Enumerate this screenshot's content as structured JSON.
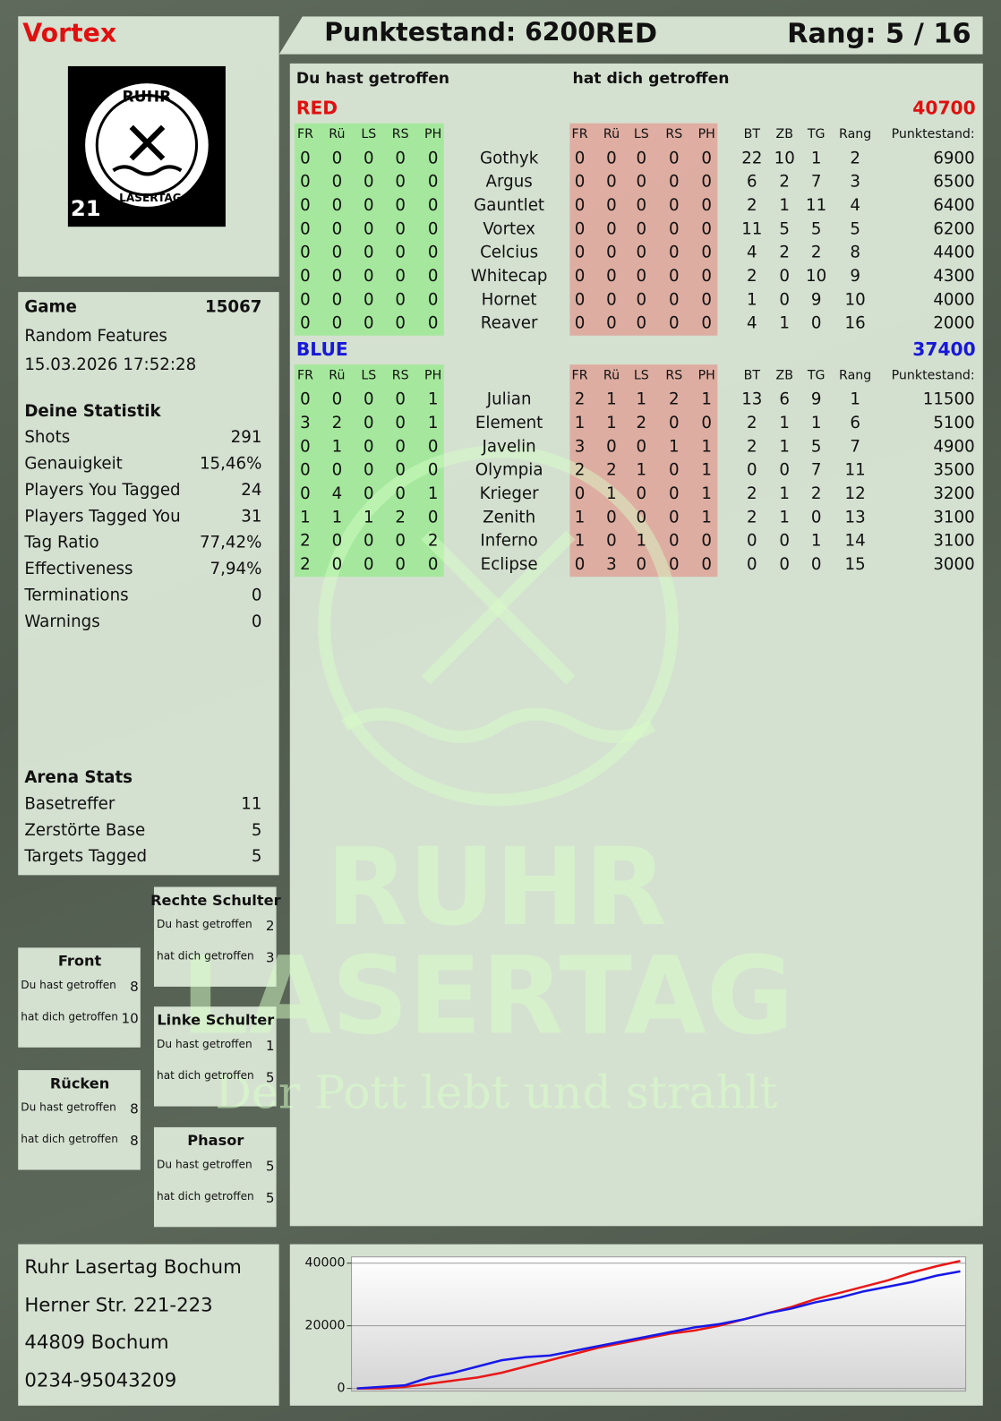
{
  "header": {
    "player": "Vortex",
    "score": "Punktestand: 6200",
    "team": "RED",
    "rank": "Rang: 5 / 16"
  },
  "logo": {
    "top": "RUHR",
    "bottom": "LASERTAG",
    "number": "21"
  },
  "watermark": {
    "line1": "RUHR",
    "line2": "LASERTAG",
    "slogan": "Der Pott lebt und strahlt"
  },
  "game": {
    "label": "Game",
    "id": 15067,
    "mode": "Random Features",
    "date": "15.03.2026 17:52:28"
  },
  "stats": {
    "title": "Deine Statistik",
    "rows": [
      [
        "Shots",
        291
      ],
      [
        "Genauigkeit",
        "15,46%"
      ],
      [
        "Players You Tagged",
        24
      ],
      [
        "Players Tagged You",
        31
      ],
      [
        "Tag Ratio",
        "77,42%"
      ],
      [
        "Effectiveness",
        "7,94%"
      ],
      [
        "Terminations",
        0
      ],
      [
        "Warnings",
        0
      ]
    ]
  },
  "arena": {
    "title": "Arena Stats",
    "rows": [
      [
        "Basetreffer",
        11
      ],
      [
        "Zerstörte Base",
        5
      ],
      [
        "Targets Tagged",
        5
      ]
    ]
  },
  "zones": [
    {
      "title": "Rechte Schulter",
      "rows": [
        [
          "Du hast getroffen",
          2
        ],
        [
          "hat dich getroffen",
          3
        ]
      ]
    },
    {
      "title": "Front",
      "rows": [
        [
          "Du hast getroffen",
          8
        ],
        [
          "hat dich getroffen",
          10
        ]
      ]
    },
    {
      "title": "Linke Schulter",
      "rows": [
        [
          "Du hast getroffen",
          1
        ],
        [
          "hat dich getroffen",
          5
        ]
      ]
    },
    {
      "title": "Rücken",
      "rows": [
        [
          "Du hast getroffen",
          8
        ],
        [
          "hat dich getroffen",
          8
        ]
      ]
    },
    {
      "title": "Phasor",
      "rows": [
        [
          "Du hast getroffen",
          5
        ],
        [
          "hat dich getroffen",
          5
        ]
      ]
    }
  ],
  "address": [
    "Ruhr Lasertag Bochum",
    "Herner Str. 221-223",
    "44809 Bochum",
    "0234-95043209"
  ],
  "scoreboard": {
    "hit_title": "Du hast getroffen",
    "got_title": "hat dich getroffen",
    "teams": [
      {
        "name": "RED",
        "color": "#e01010",
        "score": 40700,
        "hit_cols": [
          "FR",
          "Rü",
          "LS",
          "RS",
          "PH"
        ],
        "got_cols": [
          "FR",
          "Rü",
          "LS",
          "RS",
          "PH"
        ],
        "stat_cols": [
          "BT",
          "ZB",
          "TG",
          "Rang",
          "Punktestand:"
        ],
        "players": [
          {
            "name": "Gothyk",
            "hit": [
              0,
              0,
              0,
              0,
              0
            ],
            "got": [
              0,
              0,
              0,
              0,
              0
            ],
            "stats": [
              22,
              10,
              1,
              2,
              6900
            ]
          },
          {
            "name": "Argus",
            "hit": [
              0,
              0,
              0,
              0,
              0
            ],
            "got": [
              0,
              0,
              0,
              0,
              0
            ],
            "stats": [
              6,
              2,
              7,
              3,
              6500
            ]
          },
          {
            "name": "Gauntlet",
            "hit": [
              0,
              0,
              0,
              0,
              0
            ],
            "got": [
              0,
              0,
              0,
              0,
              0
            ],
            "stats": [
              2,
              1,
              11,
              4,
              6400
            ]
          },
          {
            "name": "Vortex",
            "hit": [
              0,
              0,
              0,
              0,
              0
            ],
            "got": [
              0,
              0,
              0,
              0,
              0
            ],
            "stats": [
              11,
              5,
              5,
              5,
              6200
            ]
          },
          {
            "name": "Celcius",
            "hit": [
              0,
              0,
              0,
              0,
              0
            ],
            "got": [
              0,
              0,
              0,
              0,
              0
            ],
            "stats": [
              4,
              2,
              2,
              8,
              4400
            ]
          },
          {
            "name": "Whitecap",
            "hit": [
              0,
              0,
              0,
              0,
              0
            ],
            "got": [
              0,
              0,
              0,
              0,
              0
            ],
            "stats": [
              2,
              0,
              10,
              9,
              4300
            ]
          },
          {
            "name": "Hornet",
            "hit": [
              0,
              0,
              0,
              0,
              0
            ],
            "got": [
              0,
              0,
              0,
              0,
              0
            ],
            "stats": [
              1,
              0,
              9,
              10,
              4000
            ]
          },
          {
            "name": "Reaver",
            "hit": [
              0,
              0,
              0,
              0,
              0
            ],
            "got": [
              0,
              0,
              0,
              0,
              0
            ],
            "stats": [
              4,
              1,
              0,
              16,
              2000
            ]
          }
        ]
      },
      {
        "name": "BLUE",
        "color": "#1818d8",
        "score": 37400,
        "hit_cols": [
          "FR",
          "Rü",
          "LS",
          "RS",
          "PH"
        ],
        "got_cols": [
          "FR",
          "Rü",
          "LS",
          "RS",
          "PH"
        ],
        "stat_cols": [
          "BT",
          "ZB",
          "TG",
          "Rang",
          "Punktestand:"
        ],
        "players": [
          {
            "name": "Julian",
            "hit": [
              0,
              0,
              0,
              0,
              1
            ],
            "got": [
              2,
              1,
              1,
              2,
              1
            ],
            "stats": [
              13,
              6,
              9,
              1,
              11500
            ]
          },
          {
            "name": "Element",
            "hit": [
              3,
              2,
              0,
              0,
              1
            ],
            "got": [
              1,
              1,
              2,
              0,
              0
            ],
            "stats": [
              2,
              1,
              1,
              6,
              5100
            ]
          },
          {
            "name": "Javelin",
            "hit": [
              0,
              1,
              0,
              0,
              0
            ],
            "got": [
              3,
              0,
              0,
              1,
              1
            ],
            "stats": [
              2,
              1,
              5,
              7,
              4900
            ]
          },
          {
            "name": "Olympia",
            "hit": [
              0,
              0,
              0,
              0,
              0
            ],
            "got": [
              2,
              2,
              1,
              0,
              1
            ],
            "stats": [
              0,
              0,
              7,
              11,
              3500
            ]
          },
          {
            "name": "Krieger",
            "hit": [
              0,
              4,
              0,
              0,
              1
            ],
            "got": [
              0,
              1,
              0,
              0,
              1
            ],
            "stats": [
              2,
              1,
              2,
              12,
              3200
            ]
          },
          {
            "name": "Zenith",
            "hit": [
              1,
              1,
              1,
              2,
              0
            ],
            "got": [
              1,
              0,
              0,
              0,
              1
            ],
            "stats": [
              2,
              1,
              0,
              13,
              3100
            ]
          },
          {
            "name": "Inferno",
            "hit": [
              2,
              0,
              0,
              0,
              2
            ],
            "got": [
              1,
              0,
              1,
              0,
              0
            ],
            "stats": [
              0,
              0,
              1,
              14,
              3100
            ]
          },
          {
            "name": "Eclipse",
            "hit": [
              2,
              0,
              0,
              0,
              0
            ],
            "got": [
              0,
              3,
              0,
              0,
              0
            ],
            "stats": [
              0,
              0,
              0,
              15,
              3000
            ]
          }
        ]
      }
    ]
  },
  "chart_data": {
    "type": "line",
    "ylim": [
      0,
      42000
    ],
    "yticks": [
      0,
      20000,
      40000
    ],
    "grid": true,
    "series": [
      {
        "color": "#e81818",
        "values": [
          0,
          0,
          500,
          1500,
          2500,
          3500,
          5000,
          7000,
          9000,
          11000,
          13000,
          14500,
          16000,
          17500,
          18500,
          20000,
          22000,
          24000,
          26000,
          28500,
          30500,
          32500,
          34500,
          37000,
          39000,
          40700
        ]
      },
      {
        "color": "#1818e8",
        "values": [
          0,
          500,
          1000,
          3500,
          5000,
          7000,
          9000,
          10000,
          10500,
          12000,
          13500,
          15000,
          16500,
          18000,
          19500,
          20500,
          22000,
          24000,
          25500,
          27500,
          29000,
          31000,
          32500,
          34000,
          36000,
          37400
        ]
      }
    ]
  }
}
